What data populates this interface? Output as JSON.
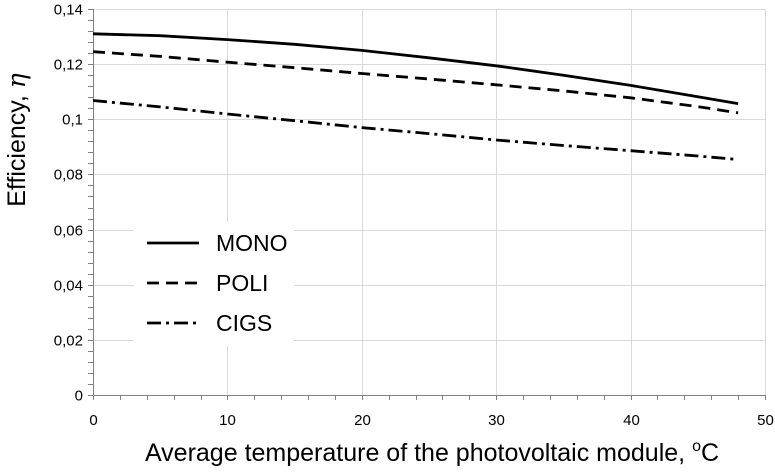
{
  "chart_data": {
    "type": "line",
    "title": "",
    "xlabel": "Average temperature of the photovoltaic module, ",
    "xlabel_sup": "o",
    "xlabel_unit": "C",
    "ylabel": "Efficiency, ",
    "ylabel_symbol": "η",
    "xlim": [
      0,
      50
    ],
    "ylim": [
      0,
      0.14
    ],
    "x_ticks": [
      0,
      10,
      20,
      30,
      40,
      50
    ],
    "x_tick_labels": [
      "0",
      "10",
      "20",
      "30",
      "40",
      "50"
    ],
    "y_ticks": [
      0,
      0.02,
      0.04,
      0.06,
      0.08,
      0.1,
      0.12,
      0.14
    ],
    "y_tick_labels": [
      "0",
      "0,02",
      "0,04",
      "0,06",
      "0,08",
      "0,1",
      "0,12",
      "0,14"
    ],
    "grid": true,
    "legend_position": "bottom-left",
    "series": [
      {
        "name": "MONO",
        "dash": "solid",
        "x": [
          0,
          5,
          10,
          15,
          20,
          25,
          30,
          35,
          40,
          45,
          48
        ],
        "y": [
          0.131,
          0.1303,
          0.1289,
          0.1272,
          0.125,
          0.1223,
          0.1194,
          0.116,
          0.1123,
          0.1082,
          0.1057
        ]
      },
      {
        "name": "POLI",
        "dash": "dashed",
        "x": [
          0,
          5,
          10,
          15,
          20,
          25,
          30,
          35,
          40,
          45,
          48
        ],
        "y": [
          0.1245,
          0.1228,
          0.1207,
          0.1187,
          0.1166,
          0.1146,
          0.1125,
          0.1103,
          0.1078,
          0.1046,
          0.1023
        ]
      },
      {
        "name": "CIGS",
        "dash": "dashdot",
        "x": [
          0,
          5,
          10,
          15,
          20,
          25,
          30,
          35,
          40,
          45,
          48
        ],
        "y": [
          0.1068,
          0.1045,
          0.1019,
          0.0995,
          0.097,
          0.0948,
          0.0925,
          0.0905,
          0.0886,
          0.0867,
          0.0854
        ]
      }
    ]
  }
}
